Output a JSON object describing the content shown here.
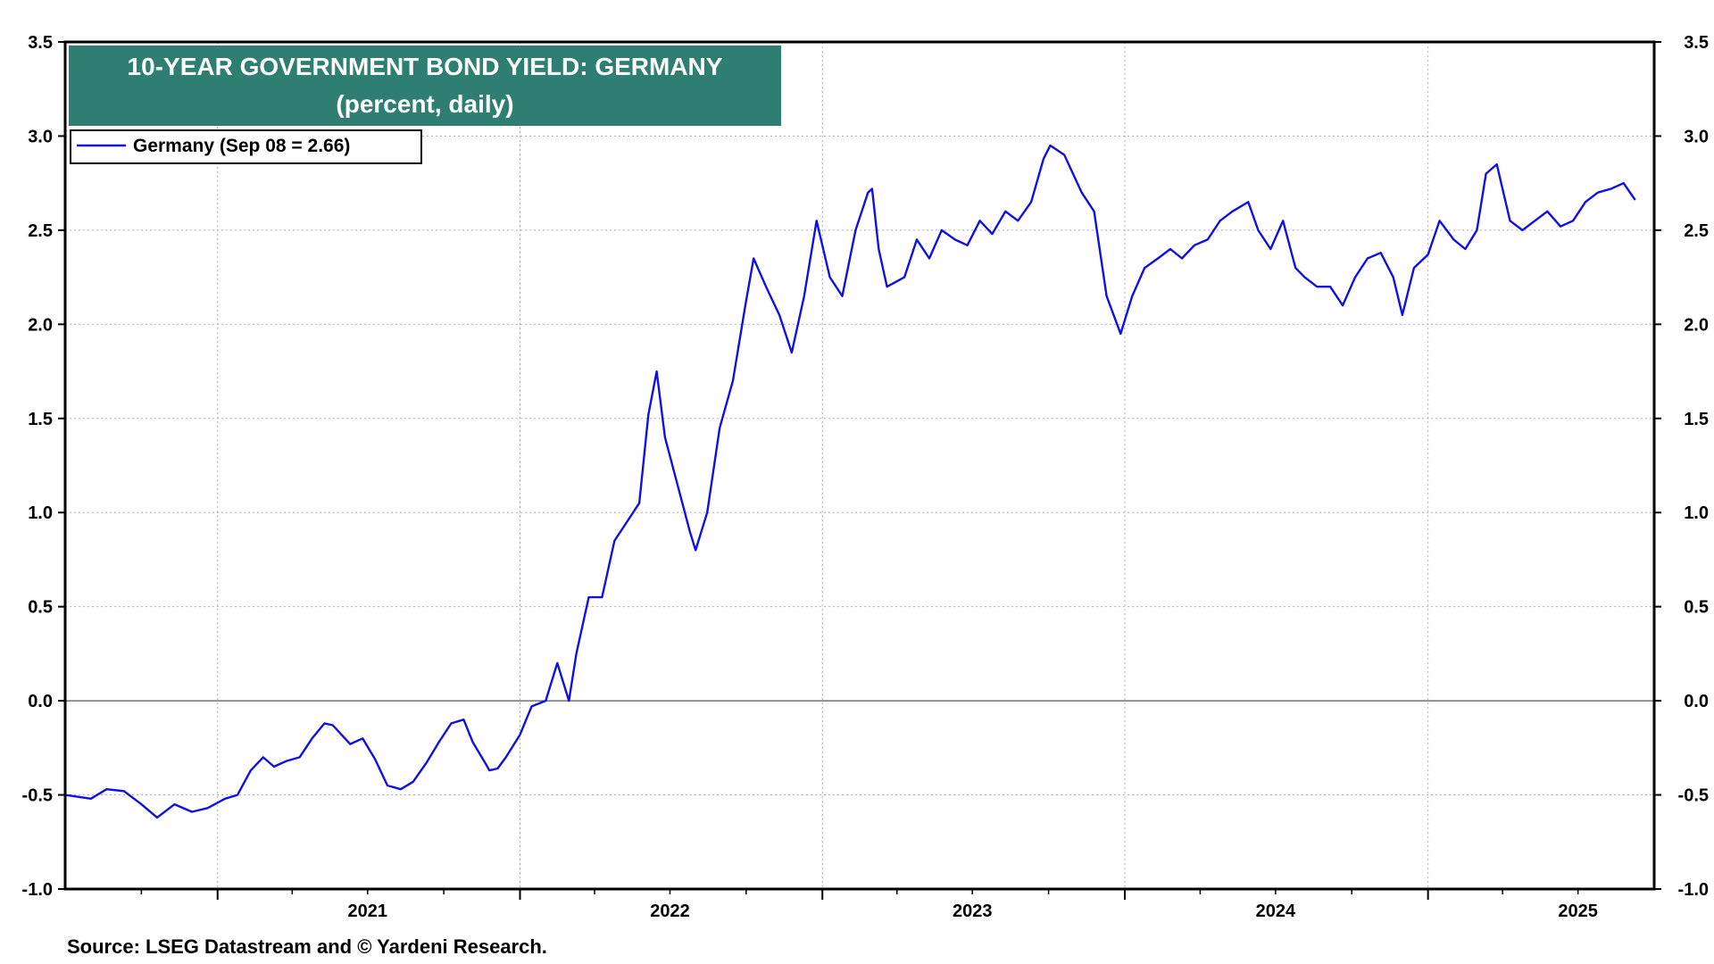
{
  "source": "Source: LSEG Datastream and © Yardeni Research.",
  "chart_data": {
    "type": "line",
    "title": "10-YEAR GOVERNMENT BOND YIELD: GERMANY",
    "subtitle": "(percent, daily)",
    "ylim": [
      -1.0,
      3.5
    ],
    "xlim": [
      "2020-07-01",
      "2025-10-01"
    ],
    "yticks": [
      "3.5",
      "3.0",
      "2.5",
      "2.0",
      "1.5",
      "1.0",
      "0.5",
      "0.0",
      "-0.5",
      "-1.0"
    ],
    "xtick_labels": [
      "2021",
      "2022",
      "2023",
      "2024",
      "2025"
    ],
    "grid": true,
    "legend": "top-left",
    "colors": {
      "series": "#1010e6",
      "title_bg": "#2e7f72",
      "zero_line": "#555555"
    },
    "series": [
      {
        "name": "Germany (Sep 08 = 2.66)",
        "x": [
          "2020-07-01",
          "2020-08-01",
          "2020-08-20",
          "2020-09-10",
          "2020-10-01",
          "2020-10-20",
          "2020-11-10",
          "2020-12-01",
          "2020-12-20",
          "2021-01-10",
          "2021-01-25",
          "2021-02-10",
          "2021-02-25",
          "2021-03-10",
          "2021-03-25",
          "2021-04-10",
          "2021-04-25",
          "2021-05-10",
          "2021-05-20",
          "2021-06-10",
          "2021-06-25",
          "2021-07-10",
          "2021-07-25",
          "2021-08-10",
          "2021-08-25",
          "2021-09-10",
          "2021-09-25",
          "2021-10-10",
          "2021-10-25",
          "2021-11-05",
          "2021-11-20",
          "2021-11-25",
          "2021-12-05",
          "2021-12-15",
          "2022-01-01",
          "2022-01-15",
          "2022-02-01",
          "2022-02-15",
          "2022-03-01",
          "2022-03-10",
          "2022-03-25",
          "2022-04-10",
          "2022-04-25",
          "2022-05-10",
          "2022-05-25",
          "2022-06-05",
          "2022-06-15",
          "2022-06-25",
          "2022-07-10",
          "2022-07-25",
          "2022-08-01",
          "2022-08-15",
          "2022-08-30",
          "2022-09-15",
          "2022-09-30",
          "2022-10-10",
          "2022-10-25",
          "2022-11-10",
          "2022-11-25",
          "2022-12-10",
          "2022-12-25",
          "2023-01-10",
          "2023-01-25",
          "2023-02-10",
          "2023-02-25",
          "2023-03-02",
          "2023-03-10",
          "2023-03-20",
          "2023-04-10",
          "2023-04-25",
          "2023-05-10",
          "2023-05-25",
          "2023-06-10",
          "2023-06-25",
          "2023-07-10",
          "2023-07-25",
          "2023-08-10",
          "2023-08-25",
          "2023-09-10",
          "2023-09-25",
          "2023-10-03",
          "2023-10-20",
          "2023-11-10",
          "2023-11-25",
          "2023-12-10",
          "2023-12-27",
          "2024-01-10",
          "2024-01-25",
          "2024-02-10",
          "2024-02-25",
          "2024-03-10",
          "2024-03-25",
          "2024-04-10",
          "2024-04-25",
          "2024-05-10",
          "2024-05-29",
          "2024-06-10",
          "2024-06-25",
          "2024-07-10",
          "2024-07-25",
          "2024-08-05",
          "2024-08-20",
          "2024-09-05",
          "2024-09-20",
          "2024-10-05",
          "2024-10-20",
          "2024-11-05",
          "2024-11-20",
          "2024-12-01",
          "2024-12-15",
          "2025-01-01",
          "2025-01-15",
          "2025-02-01",
          "2025-02-15",
          "2025-03-01",
          "2025-03-12",
          "2025-03-25",
          "2025-04-10",
          "2025-04-25",
          "2025-05-10",
          "2025-05-25",
          "2025-06-10",
          "2025-06-25",
          "2025-07-10",
          "2025-07-25",
          "2025-08-10",
          "2025-08-25",
          "2025-09-08"
        ],
        "values": [
          -0.5,
          -0.52,
          -0.47,
          -0.48,
          -0.55,
          -0.62,
          -0.55,
          -0.59,
          -0.57,
          -0.52,
          -0.5,
          -0.37,
          -0.3,
          -0.35,
          -0.32,
          -0.3,
          -0.2,
          -0.12,
          -0.13,
          -0.23,
          -0.2,
          -0.31,
          -0.45,
          -0.47,
          -0.43,
          -0.33,
          -0.22,
          -0.12,
          -0.1,
          -0.22,
          -0.33,
          -0.37,
          -0.36,
          -0.3,
          -0.18,
          -0.03,
          0.0,
          0.2,
          0.0,
          0.25,
          0.55,
          0.55,
          0.85,
          0.95,
          1.05,
          1.52,
          1.75,
          1.4,
          1.15,
          0.9,
          0.8,
          1.0,
          1.45,
          1.7,
          2.1,
          2.35,
          2.2,
          2.05,
          1.85,
          2.15,
          2.55,
          2.25,
          2.15,
          2.5,
          2.7,
          2.72,
          2.4,
          2.2,
          2.25,
          2.45,
          2.35,
          2.5,
          2.45,
          2.42,
          2.55,
          2.48,
          2.6,
          2.55,
          2.65,
          2.88,
          2.95,
          2.9,
          2.7,
          2.6,
          2.15,
          1.95,
          2.15,
          2.3,
          2.35,
          2.4,
          2.35,
          2.42,
          2.45,
          2.55,
          2.6,
          2.65,
          2.5,
          2.4,
          2.55,
          2.3,
          2.25,
          2.2,
          2.2,
          2.1,
          2.25,
          2.35,
          2.38,
          2.25,
          2.05,
          2.3,
          2.37,
          2.55,
          2.45,
          2.4,
          2.5,
          2.8,
          2.85,
          2.55,
          2.5,
          2.55,
          2.6,
          2.52,
          2.55,
          2.65,
          2.7,
          2.72,
          2.75,
          2.66
        ]
      }
    ]
  }
}
